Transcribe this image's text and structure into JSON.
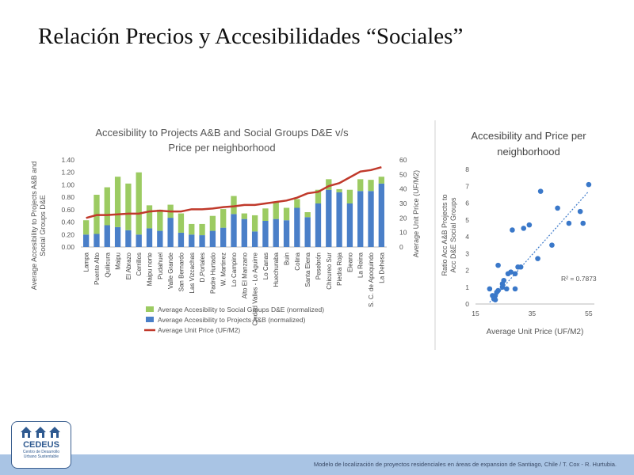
{
  "slide": {
    "title": "Relación Precios y Accesibilidades “Sociales”",
    "footer": "Modelo de localización de proyectos residenciales en áreas de expansion de Santiago, Chile  / T. Cox  - R. Hurtubia.",
    "logo": {
      "name": "CEDEUS",
      "line1": "Centro de Desarrollo",
      "line2": "Urbano Sustentable"
    }
  },
  "colors": {
    "green": "#9ccb62",
    "blue": "#4a7fc8",
    "red": "#c0392b",
    "scatter": "#3a78c9"
  },
  "chart_data": [
    {
      "type": "bar",
      "stacked": true,
      "title": "Accesibility to Projects A&B and Social Groups D&E  v/s",
      "subtitle": "Price per neighborhood",
      "ylabel": "Average Accesibility to Projects A&B and Social Groups D&E",
      "y2label": "Average Unit Price (UF/M2)",
      "ylim": [
        0,
        1.4
      ],
      "y2lim": [
        0,
        60
      ],
      "yticks": [
        "0.00",
        "0.20",
        "0.40",
        "0.60",
        "0.80",
        "1.00",
        "1.20",
        "1.40"
      ],
      "y2ticks": [
        "0",
        "10",
        "20",
        "30",
        "40",
        "50",
        "60"
      ],
      "categories": [
        "Lampa",
        "Puente Alto",
        "Quilicura",
        "Maipu",
        "El Abrazo",
        "Cerrillos",
        "Maipu norte",
        "Pudahuel",
        "Valle Grande",
        "San Bernardo",
        "Las Vizcachas",
        "D.Portales",
        "Padre Hurtado",
        "W. Martinez",
        "Lo Campino",
        "Alto El Manzano",
        "Ciudad Valles - Lo Aguirre",
        "Lo Canas",
        "Huechuraba",
        "Buin",
        "Colina",
        "Santa Elena",
        "Pesebrón",
        "Chicureo Sur",
        "Piedra Roja",
        "Eleano",
        "La Reina",
        "S. C. de Apoquindo",
        "La Dehesa"
      ],
      "series": [
        {
          "name": "Average Accesibility to Projects A&B (normalized)",
          "kind": "bar",
          "values": [
            0.2,
            0.21,
            0.35,
            0.32,
            0.27,
            0.2,
            0.3,
            0.26,
            0.47,
            0.23,
            0.2,
            0.19,
            0.26,
            0.31,
            0.53,
            0.45,
            0.25,
            0.42,
            0.45,
            0.43,
            0.63,
            0.48,
            0.7,
            0.92,
            0.88,
            0.7,
            0.9,
            0.9,
            1.02
          ]
        },
        {
          "name": "Average Accesibility to Social Groups D&E (normalized)",
          "kind": "bar",
          "values": [
            0.23,
            0.63,
            0.61,
            0.81,
            0.75,
            1.0,
            0.37,
            0.34,
            0.21,
            0.31,
            0.17,
            0.18,
            0.24,
            0.3,
            0.29,
            0.09,
            0.26,
            0.2,
            0.27,
            0.2,
            0.14,
            0.08,
            0.22,
            0.17,
            0.05,
            0.22,
            0.19,
            0.18,
            0.11
          ]
        },
        {
          "name": "Average Unit Price (UF/M2)",
          "kind": "line",
          "axis": "right",
          "values": [
            20,
            22,
            22,
            22.5,
            23,
            23,
            24.5,
            25,
            24.5,
            24.5,
            26,
            26,
            26.5,
            27.5,
            28,
            29,
            29,
            30,
            31,
            32,
            34,
            37,
            38,
            42,
            44,
            48,
            52,
            53,
            55
          ]
        }
      ],
      "legend": "bottom"
    },
    {
      "type": "scatter",
      "title": "Accesibility and Price per",
      "subtitle": "neighborhood",
      "xlabel": "Average Unit Price (UF/M2)",
      "ylabel": "Ratio Acc A&B Projects to Acc D&E Social Groups",
      "xlim": [
        15,
        57
      ],
      "ylim": [
        0,
        8
      ],
      "xticks": [
        "15",
        "35",
        "55"
      ],
      "yticks": [
        "0",
        "1",
        "2",
        "3",
        "4",
        "5",
        "6",
        "7",
        "8"
      ],
      "annotation": "R² = 0.7873",
      "trendline": {
        "from": [
          20,
          0.1
        ],
        "to": [
          55,
          6.7
        ]
      },
      "points": [
        [
          20,
          0.9
        ],
        [
          21,
          0.5
        ],
        [
          21.5,
          0.3
        ],
        [
          22,
          0.5
        ],
        [
          22,
          0.25
        ],
        [
          22.5,
          0.7
        ],
        [
          23,
          0.8
        ],
        [
          23,
          2.3
        ],
        [
          24.5,
          1.0
        ],
        [
          24.5,
          1.2
        ],
        [
          25,
          1.4
        ],
        [
          26,
          0.9
        ],
        [
          26.5,
          1.8
        ],
        [
          27.5,
          1.9
        ],
        [
          28,
          4.4
        ],
        [
          29,
          0.9
        ],
        [
          29,
          1.8
        ],
        [
          30,
          2.2
        ],
        [
          31,
          2.2
        ],
        [
          32,
          4.5
        ],
        [
          34,
          4.7
        ],
        [
          37,
          2.7
        ],
        [
          38,
          6.7
        ],
        [
          42,
          3.5
        ],
        [
          44,
          5.7
        ],
        [
          48,
          4.8
        ],
        [
          52,
          5.5
        ],
        [
          53,
          4.8
        ],
        [
          55,
          7.1
        ]
      ]
    }
  ]
}
